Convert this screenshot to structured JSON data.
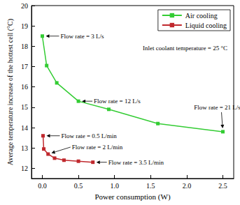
{
  "chart_data": {
    "type": "line",
    "x_label": "Power consumption (W)",
    "y_label": "Average temperature increase of the hottest cell (°C)",
    "xlim": [
      -0.15,
      2.65
    ],
    "xticks": [
      {
        "value": 0,
        "label": "0.0"
      },
      0.5,
      {
        "value": 1,
        "label": "1.0"
      },
      1.5,
      {
        "value": 2,
        "label": "2.0"
      },
      2.5
    ],
    "ylim": [
      11.5,
      20
    ],
    "yticks": [
      12,
      13,
      14,
      15,
      16,
      17,
      18,
      19,
      20
    ],
    "grid": false,
    "legend": "upper right",
    "marker": "square",
    "series": [
      {
        "name": "Air cooling",
        "color": "#33cc33",
        "x": [
          0,
          0.06,
          0.2,
          0.5,
          0.92,
          1.6,
          2.5
        ],
        "values": [
          18.5,
          17.05,
          16.2,
          15.3,
          14.9,
          14.2,
          13.8
        ]
      },
      {
        "name": "Liquid cooling",
        "color": "#c0282d",
        "x": [
          0.01,
          0.02,
          0.08,
          0.17,
          0.3,
          0.5,
          0.7
        ],
        "values": [
          13.6,
          12.95,
          12.7,
          12.5,
          12.4,
          12.35,
          12.3
        ]
      }
    ],
    "annotations": [
      {
        "text": "Inlet coolant temperature = 25 °C"
      },
      {
        "text": "Flow rate = 3 L/s",
        "x": 0,
        "y": 18.5
      },
      {
        "text": "Flow rate = 12 L/s",
        "x": 0.5,
        "y": 15.3
      },
      {
        "text": "Flow rate = 21 L/s",
        "x": 2.5,
        "y": 13.8
      },
      {
        "text": "Flow rate = 0.5 L/min",
        "x": 0.01,
        "y": 13.6
      },
      {
        "text": "Flow rate = 2 L/min",
        "x": 0.08,
        "y": 12.7
      },
      {
        "text": "Flow rate = 3.5 L/min",
        "x": 0.7,
        "y": 12.3
      }
    ]
  }
}
